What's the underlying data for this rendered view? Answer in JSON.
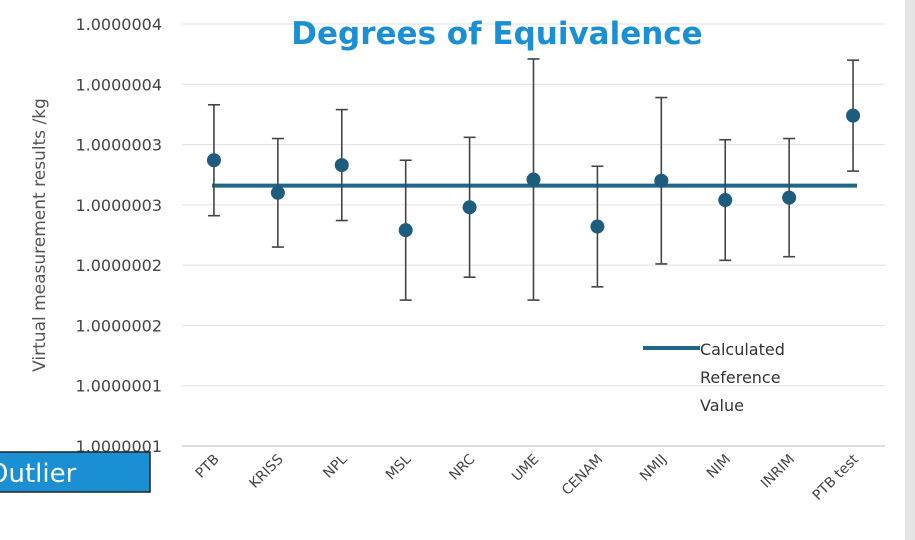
{
  "chart_data": {
    "type": "errorbar",
    "title": "Degrees of Equivalence",
    "y_label": "Virtual measurement results /kg",
    "annotation": "Outlier",
    "categories": [
      "PTB",
      "KRISS",
      "NPL",
      "MSL",
      "NRC",
      "UME",
      "CENAM",
      "NMIJ",
      "NIM",
      "INRIM",
      "PTB test"
    ],
    "values": [
      1.000000337,
      1.00000031,
      1.000000333,
      1.000000279,
      1.000000298,
      1.000000321,
      1.000000282,
      1.00000032,
      1.000000304,
      1.000000306,
      1.000000374
    ],
    "errors": [
      4.6e-08,
      4.5e-08,
      4.6e-08,
      5.8e-08,
      5.8e-08,
      1e-07,
      5e-08,
      6.9e-08,
      5e-08,
      4.9e-08,
      4.6e-08
    ],
    "color": "#1d5c7c",
    "reference": {
      "name": "Calculated Reference Value",
      "value": 1.000000316,
      "color": "#1f6688"
    },
    "ylim": [
      1.0000001,
      1.00000045
    ],
    "yticks": [
      {
        "value": 1.0000001,
        "label": "1.0000001"
      },
      {
        "value": 1.00000015,
        "label": "1.0000001"
      },
      {
        "value": 1.0000002,
        "label": "1.0000002"
      },
      {
        "value": 1.00000025,
        "label": "1.0000002"
      },
      {
        "value": 1.0000003,
        "label": "1.0000003"
      },
      {
        "value": 1.00000035,
        "label": "1.0000003"
      },
      {
        "value": 1.0000004,
        "label": "1.0000004"
      },
      {
        "value": 1.00000045,
        "label": "1.0000004"
      }
    ],
    "grid": true
  }
}
